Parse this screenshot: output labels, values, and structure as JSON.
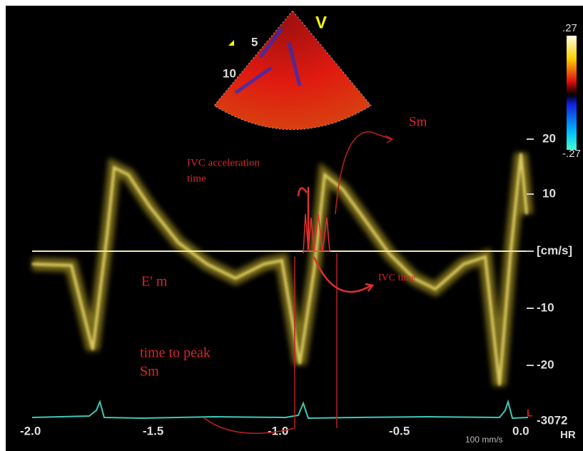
{
  "sector": {
    "marker": "V",
    "depths": [
      "5",
      "10"
    ]
  },
  "color_scale": {
    "top": ".27",
    "bottom": "-.27"
  },
  "annotations": {
    "sm": "Sm",
    "ivc_acceleration_time": [
      "IVC acceleration",
      "time"
    ],
    "e_m": "E' m",
    "ivc_time": "IVC time",
    "time_to_peak_sm": [
      "time to peak",
      "Sm"
    ]
  },
  "velocity_axis": {
    "labels": [
      "20",
      "10",
      "[cm/s]",
      "-10",
      "-20"
    ]
  },
  "ecg": {
    "label": "-3072",
    "lead": "L",
    "heart_rate": "HR"
  },
  "time_axis": {
    "labels": [
      "-2.0",
      "-1.5",
      "-1.0",
      "-0.5",
      "0.0"
    ],
    "sweep": "100 mm/s"
  }
}
